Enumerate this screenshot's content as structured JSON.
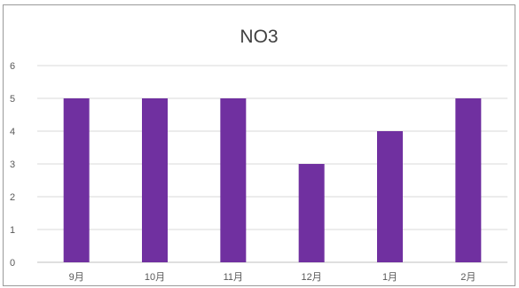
{
  "chart_data": {
    "type": "bar",
    "title": "NO3",
    "xlabel": "",
    "ylabel": "",
    "categories": [
      "9月",
      "10月",
      "11月",
      "12月",
      "1月",
      "2月"
    ],
    "values": [
      5,
      5,
      5,
      3,
      4,
      5
    ],
    "ylim": [
      0,
      6
    ],
    "yticks": [
      "0",
      "1",
      "2",
      "3",
      "4",
      "5",
      "6"
    ],
    "grid": true,
    "legend": "none",
    "bar_color": "#7030a0",
    "grid_color": "#d9d9d9"
  }
}
